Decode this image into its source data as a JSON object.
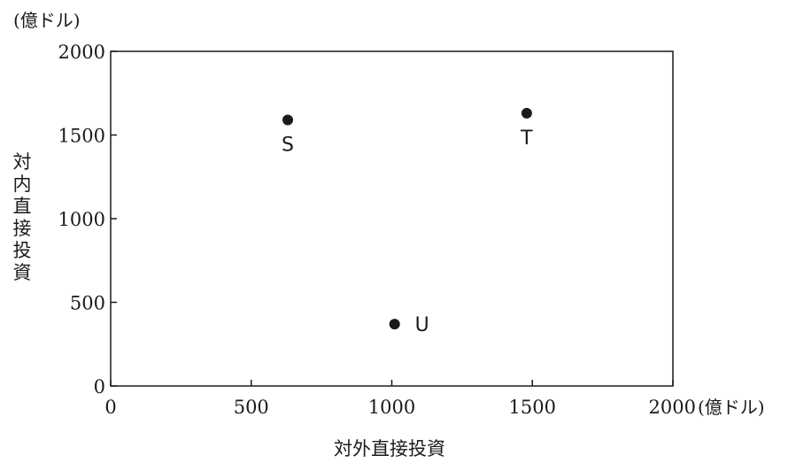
{
  "chart_data": {
    "type": "scatter",
    "title": "",
    "xlabel": "対外直接投資",
    "ylabel": "対内直接投資",
    "x_unit": "(億ドル)",
    "y_unit": "(億ドル)",
    "xlim": [
      0,
      2000
    ],
    "ylim": [
      0,
      2000
    ],
    "x_ticks": [
      "0",
      "500",
      "1000",
      "1500",
      "2000"
    ],
    "y_ticks": [
      "0",
      "500",
      "1000",
      "1500",
      "2000"
    ],
    "grid": false,
    "legend": "none",
    "points": [
      {
        "label": "S",
        "x": 630,
        "y": 1590
      },
      {
        "label": "T",
        "x": 1480,
        "y": 1630
      },
      {
        "label": "U",
        "x": 1010,
        "y": 370
      }
    ]
  }
}
